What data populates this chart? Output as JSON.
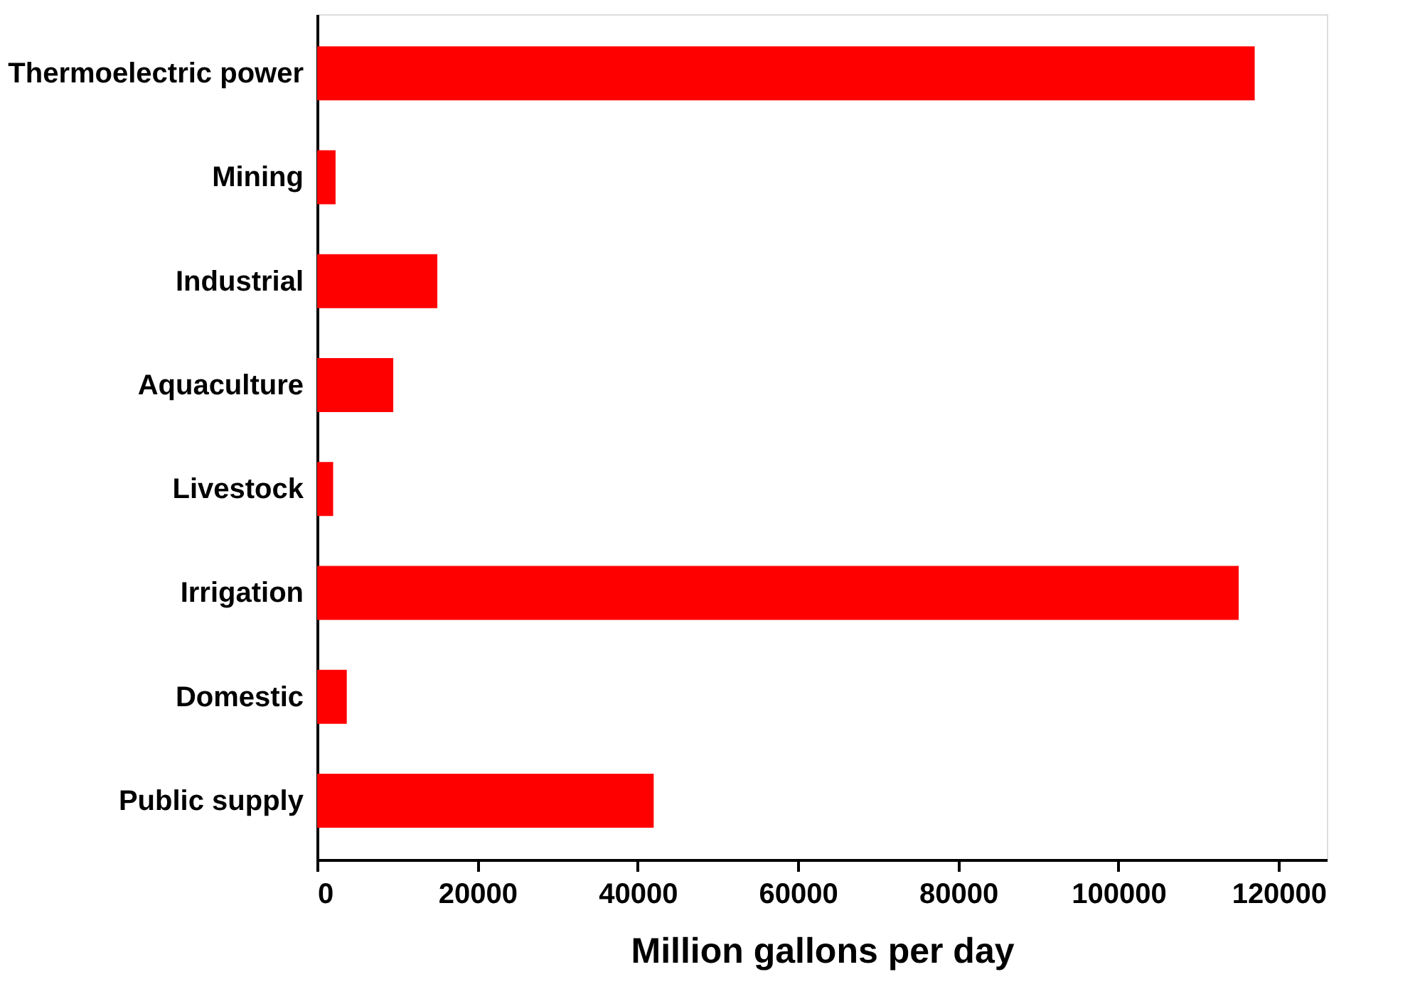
{
  "chart_data": {
    "type": "bar",
    "orientation": "horizontal",
    "xlabel": "Million gallons per day",
    "categories": [
      "Thermoelectric power",
      "Mining",
      "Industrial",
      "Aquaculture",
      "Livestock",
      "Irrigation",
      "Domestic",
      "Public supply"
    ],
    "values": [
      117000,
      2300,
      15000,
      9500,
      2000,
      115000,
      3700,
      42000
    ],
    "color": "#ff0000",
    "xlim": [
      0,
      126000
    ],
    "xticks": [
      0,
      20000,
      40000,
      60000,
      80000,
      100000,
      120000
    ],
    "grid": false
  }
}
